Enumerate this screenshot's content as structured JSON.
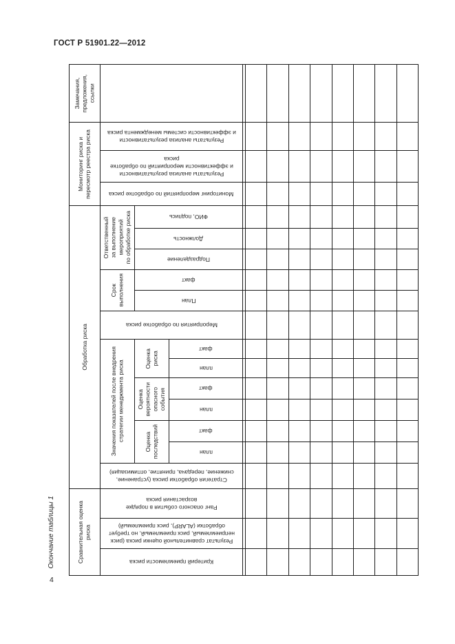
{
  "page": {
    "header": "ГОСТ Р 51901.22—2012",
    "table_caption": "Окончание таблицы 1",
    "page_number": "4"
  },
  "table": {
    "data_columns": 8,
    "data_rows": 20,
    "groups": {
      "remarks": "Замечания,\nпредложения,\nссылки",
      "monitoring": "Мониторинг риска и\nпересмотр реестра риска",
      "treatment": "Обработка риска",
      "comparative": "Сравнительная оценка\nриска",
      "responsible": "Ответственный\nза выполнение\nмероприятий\nпо обработке риска",
      "term": "Срок\nвыполнения",
      "values_after": "Значения показателей после внедрения\nстратегии менеджмента риска",
      "risk_assessment": "Оценка\nриска",
      "probability_assessment": "Оценка\nвероятности\nопасного\nсобытия",
      "consequence_assessment": "Оценка\nпоследствий"
    },
    "leaves": {
      "results_system": "Результаты анализа результативности\nи эффективности системы менеджмента риска",
      "results_actions": "Результаты анализа результативности\nи эффективности мероприятий по обработке\nриска",
      "monitoring_actions": "Мониторинг мероприятий по обработке риска",
      "fio_signature": "ФИО, подпись",
      "position": "Должность",
      "department": "Подразделение",
      "term_fact": "факт",
      "term_plan": "План",
      "actions": "Мероприятия по обработке риска",
      "risk_fact": "факт",
      "risk_plan": "план",
      "probability_fact": "факт",
      "probability_plan": "план",
      "consequence_fact": "факт",
      "consequence_plan": "план",
      "strategy": "Стратегия обработки риска (устранение,\nснижение, передача, принятие, оптимизация)",
      "rank": "Ранг опасного события в порядке\nвозрастания риска",
      "comparison_result": "Результат сравнительной оценки риска (риск\nнеприемлемый, риск приемлемый, но требует\nобработки (ALARP), риск приемлемый)",
      "criteria": "Критерий приемлемости риска"
    }
  }
}
